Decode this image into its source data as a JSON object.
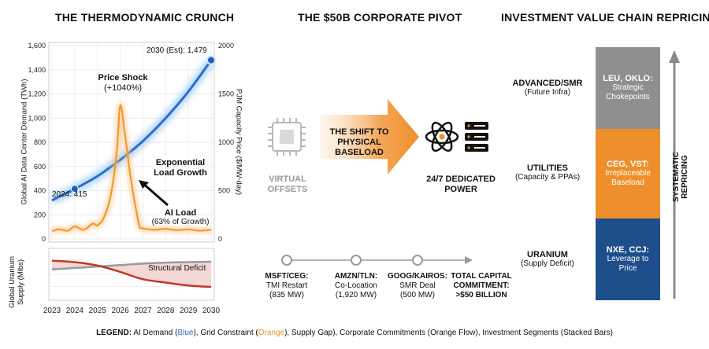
{
  "titles": {
    "left": "THE THERMODYNAMIC CRUNCH",
    "middle": "THE $50B CORPORATE PIVOT",
    "right": "INVESTMENT VALUE CHAIN REPRICING"
  },
  "chart_data": [
    {
      "type": "line",
      "title": "",
      "x": [
        2023,
        2024,
        2025,
        2026,
        2027,
        2028,
        2029,
        2030
      ],
      "xlim": [
        2023,
        2030
      ],
      "ylabel": "Global AI Data Center Demand (TWh)",
      "ylim": [
        0,
        1600
      ],
      "yticks": [
        "0",
        "200",
        "400",
        "600",
        "800",
        "1,000",
        "1,200",
        "1,400",
        "1,600"
      ],
      "y2label": "PJM Capacity Price ($/MW-day)",
      "y2lim": [
        0,
        2000
      ],
      "y2ticks": [
        "0",
        "500",
        "1000",
        "1500",
        "2000"
      ],
      "series": [
        {
          "axis": "left",
          "color": "#2a6fc9",
          "x": [
            2023,
            2024,
            2025,
            2026,
            2027,
            2028,
            2029,
            2030
          ],
          "values": [
            320,
            415,
            520,
            655,
            810,
            1000,
            1220,
            1479
          ]
        },
        {
          "axis": "right",
          "color": "#f0962e",
          "x": [
            2023,
            2023.3,
            2023.7,
            2024,
            2024.4,
            2024.8,
            2025,
            2025.3,
            2025.6,
            2025.85,
            2026,
            2026.2,
            2026.45,
            2026.7,
            2026.85,
            2027,
            2027.5,
            2028,
            2028.5,
            2029,
            2029.5,
            2030
          ],
          "values": [
            80,
            100,
            85,
            130,
            95,
            160,
            140,
            230,
            470,
            900,
            1380,
            1100,
            650,
            300,
            130,
            110,
            95,
            105,
            90,
            100,
            85,
            95
          ]
        }
      ],
      "annotations": {
        "start": "2024: 415",
        "end": "2030 (Est): 1,479",
        "shock_title": "Price Shock",
        "shock_sub": "(+1040%)",
        "growth_1": "Exponential",
        "growth_2": "Load Growth",
        "ai_load_title": "AI Load",
        "ai_load_sub": "(63% of Growth)"
      }
    },
    {
      "type": "line",
      "title": "",
      "ylabel_1": "Global Uranium",
      "ylabel_2": "Supply (Mlbs)",
      "x": [
        2023,
        2024,
        2025,
        2026,
        2027,
        2028,
        2029,
        2030
      ],
      "xticks": [
        "2023",
        "2024",
        "2025",
        "2026",
        "2027",
        "2028",
        "2029",
        "2030"
      ],
      "ylim": [
        0,
        100
      ],
      "series": [
        {
          "color": "#9a9a9a",
          "values": [
            60,
            63,
            66,
            69,
            72,
            74,
            75,
            76
          ]
        },
        {
          "color": "#c0392b",
          "values": [
            78,
            75,
            68,
            55,
            40,
            33,
            27,
            24
          ]
        }
      ],
      "annotation": "Structural Deficit"
    }
  ],
  "pivot": {
    "virtual_1": "VIRTUAL",
    "virtual_2": "OFFSETS",
    "arrow_1": "THE SHIFT TO",
    "arrow_2": "PHYSICAL",
    "arrow_3": "BASELOAD",
    "power_1": "24/7 DEDICATED",
    "power_2": "POWER",
    "deals": [
      {
        "name": "MSFT/CEG:",
        "line1": "TMI Restart",
        "line2": "(835 MW)"
      },
      {
        "name": "AMZN/TLN:",
        "line1": "Co-Location",
        "line2": "(1,920 MW)"
      },
      {
        "name": "GOOG/KAIROS:",
        "line1": "SMR Deal",
        "line2": "(500 MW)"
      }
    ],
    "total_1": "TOTAL CAPITAL",
    "total_2": "COMMITMENT:",
    "total_3": ">$50 BILLION"
  },
  "value_chain": {
    "segments": [
      {
        "label": "ADVANCED/SMR",
        "sub": "(Future Infra)",
        "bar_title": "LEU, OKLO:",
        "bar_1": "Strategic",
        "bar_2": "Chokepoints",
        "color": "#8f8f8f"
      },
      {
        "label": "UTILITIES",
        "sub_1": "(Capacity & PPAs)",
        "bar_title": "CEG, VST:",
        "bar_1": "Irreplaceable",
        "bar_2": "Baseload",
        "color": "#ef8f2c"
      },
      {
        "label": "URANIUM",
        "sub": "(Supply Deficit)",
        "bar_title": "NXE, CCJ:",
        "bar_1": "Leverage to",
        "bar_2": "Price",
        "color": "#1e4f8c"
      }
    ],
    "axis_label": "SYSTEMATIC REPRICING"
  },
  "legend": {
    "prefix": "LEGEND:",
    "ai": "AI Demand (",
    "ai_c": "Blue",
    "grid": "), Grid Constraint (",
    "grid_c": "Orange",
    "rest": "), Supply Gap), Corporate Commitments (Orange Flow), Investment Segments (Stacked Bars)"
  }
}
